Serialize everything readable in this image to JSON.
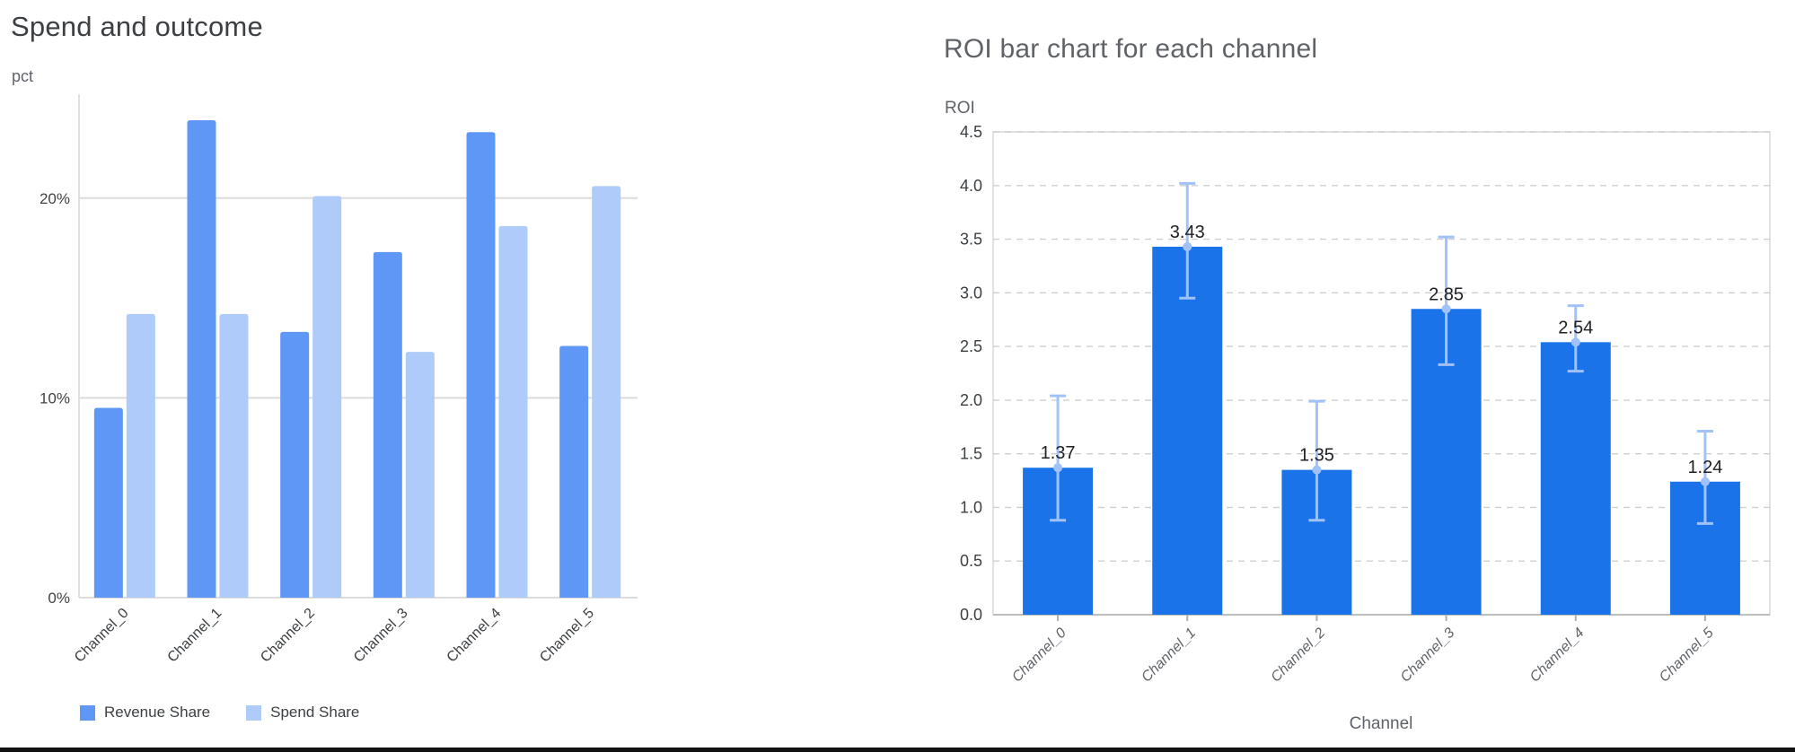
{
  "page": {
    "background": "#ffffff",
    "bottom_border_color": "#111111"
  },
  "chart_data": [
    {
      "type": "bar",
      "title": "Spend and outcome",
      "ylabel": "pct",
      "xlabel": "",
      "categories": [
        "Channel_0",
        "Channel_1",
        "Channel_2",
        "Channel_3",
        "Channel_4",
        "Channel_5"
      ],
      "series": [
        {
          "name": "Revenue Share",
          "color": "#5e97f6",
          "values": [
            9.5,
            23.9,
            13.3,
            17.3,
            23.3,
            12.6
          ]
        },
        {
          "name": "Spend Share",
          "color": "#aecbfa",
          "values": [
            14.2,
            14.2,
            20.1,
            12.3,
            18.6,
            20.6
          ]
        }
      ],
      "yticks": [
        {
          "label": "0%",
          "value": 0
        },
        {
          "label": "10%",
          "value": 10
        },
        {
          "label": "20%",
          "value": 20
        }
      ],
      "ylim": [
        0,
        25.2
      ],
      "grid": "solid",
      "legend_position": "bottom"
    },
    {
      "type": "bar",
      "title": "ROI bar chart for each channel",
      "ylabel": "ROI",
      "xlabel": "Channel",
      "categories": [
        "Channel_0",
        "Channel_1",
        "Channel_2",
        "Channel_3",
        "Channel_4",
        "Channel_5"
      ],
      "values": [
        1.37,
        3.43,
        1.35,
        2.85,
        2.54,
        1.24
      ],
      "error_low": [
        0.88,
        2.95,
        0.88,
        2.33,
        2.27,
        0.85
      ],
      "error_high": [
        2.04,
        4.02,
        1.99,
        3.52,
        2.88,
        1.71
      ],
      "bar_color": "#1a73e8",
      "error_color": "#a0c2f9",
      "value_label_color": "#202124",
      "ylim": [
        0,
        4.5
      ],
      "ytick_step": 0.5,
      "grid": "dashed",
      "legend_position": "none"
    }
  ]
}
